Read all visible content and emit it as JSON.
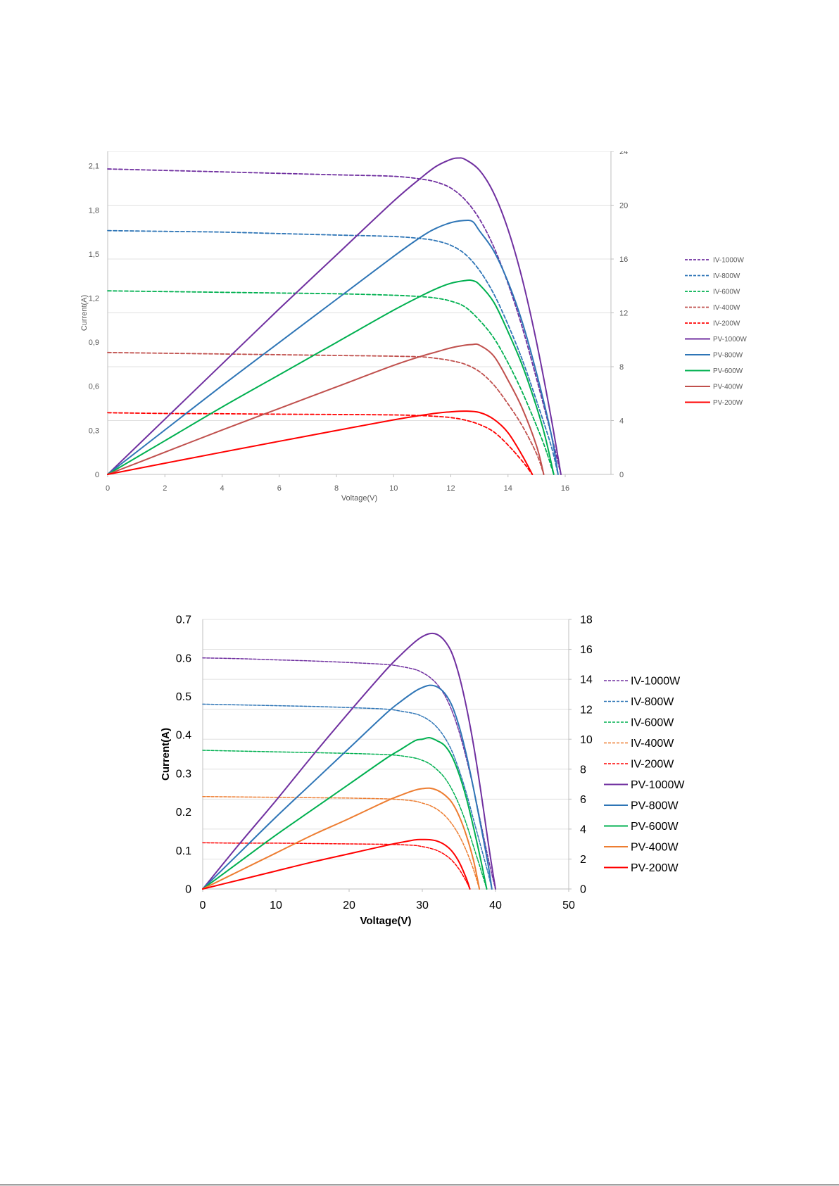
{
  "chart_data": [
    {
      "type": "line",
      "xlabel": "Voltage(V)",
      "ylabel": "Current(A)",
      "xlim": [
        0,
        17.6
      ],
      "xticks": [
        0,
        2,
        4,
        6,
        8,
        10,
        12,
        14,
        16
      ],
      "ylim": [
        0,
        2.2
      ],
      "yticks": [
        "0",
        "0,3",
        "0,6",
        "0,9",
        "1,2",
        "1,5",
        "1,8",
        "2,1"
      ],
      "ytick_values": [
        0,
        0.3,
        0.6,
        0.9,
        1.2,
        1.5,
        1.8,
        2.1
      ],
      "y2lim": [
        0,
        24
      ],
      "y2ticks": [
        0,
        4,
        8,
        12,
        16,
        20,
        24
      ],
      "grid": true,
      "legend_position": "right",
      "series": [
        {
          "name": "IV-1000W",
          "axis": "left",
          "style": "dashed",
          "color": "#7030A0",
          "x": [
            0,
            2,
            4,
            6,
            8,
            10,
            11,
            11.5,
            12,
            12.5,
            13,
            13.5,
            14,
            14.5,
            15,
            15.5,
            15.85
          ],
          "y": [
            2.08,
            2.07,
            2.06,
            2.05,
            2.04,
            2.03,
            2.01,
            1.99,
            1.95,
            1.87,
            1.74,
            1.55,
            1.3,
            1.0,
            0.65,
            0.28,
            0
          ]
        },
        {
          "name": "IV-800W",
          "axis": "left",
          "style": "dashed",
          "color": "#2E75B6",
          "x": [
            0,
            2,
            4,
            6,
            8,
            10,
            11,
            11.5,
            12,
            12.5,
            13,
            13.5,
            14,
            14.5,
            15,
            15.5,
            15.75
          ],
          "y": [
            1.66,
            1.655,
            1.65,
            1.64,
            1.63,
            1.62,
            1.605,
            1.59,
            1.56,
            1.5,
            1.39,
            1.23,
            1.02,
            0.78,
            0.5,
            0.2,
            0
          ]
        },
        {
          "name": "IV-600W",
          "axis": "left",
          "style": "dashed",
          "color": "#00B050",
          "x": [
            0,
            2,
            4,
            6,
            8,
            10,
            11,
            11.5,
            12,
            12.5,
            13,
            13.5,
            14,
            14.5,
            15,
            15.3,
            15.6
          ],
          "y": [
            1.25,
            1.245,
            1.24,
            1.235,
            1.23,
            1.22,
            1.21,
            1.2,
            1.18,
            1.14,
            1.05,
            0.93,
            0.76,
            0.56,
            0.33,
            0.18,
            0
          ]
        },
        {
          "name": "IV-400W",
          "axis": "left",
          "style": "dashed",
          "color": "#C0504D",
          "x": [
            0,
            2,
            4,
            6,
            8,
            10,
            11,
            11.5,
            12,
            12.5,
            13,
            13.5,
            14,
            14.5,
            15,
            15.25
          ],
          "y": [
            0.83,
            0.825,
            0.82,
            0.815,
            0.81,
            0.805,
            0.8,
            0.79,
            0.775,
            0.75,
            0.7,
            0.61,
            0.48,
            0.33,
            0.14,
            0
          ]
        },
        {
          "name": "IV-200W",
          "axis": "left",
          "style": "dashed",
          "color": "#FF0000",
          "x": [
            0,
            2,
            4,
            6,
            8,
            10,
            11,
            11.5,
            12,
            12.5,
            13,
            13.5,
            14,
            14.5,
            14.85
          ],
          "y": [
            0.42,
            0.415,
            0.413,
            0.41,
            0.408,
            0.405,
            0.4,
            0.395,
            0.387,
            0.37,
            0.34,
            0.29,
            0.2,
            0.09,
            0
          ]
        },
        {
          "name": "PV-1000W",
          "axis": "right",
          "style": "solid",
          "color": "#7030A0",
          "x": [
            0,
            2,
            4,
            6,
            8,
            10,
            11,
            11.5,
            12,
            12.25,
            12.5,
            13,
            13.5,
            14,
            14.5,
            15,
            15.5,
            15.85
          ],
          "y": [
            0,
            4.1,
            8.2,
            12.3,
            16.3,
            20.3,
            22.1,
            22.9,
            23.4,
            23.5,
            23.4,
            22.6,
            20.9,
            18.2,
            14.5,
            9.8,
            4.3,
            0
          ]
        },
        {
          "name": "PV-800W",
          "axis": "right",
          "style": "solid",
          "color": "#2E75B6",
          "x": [
            0,
            2,
            4,
            6,
            8,
            10,
            11,
            11.5,
            12,
            12.4,
            12.75,
            13,
            13.5,
            14,
            14.5,
            15,
            15.5,
            15.75
          ],
          "y": [
            0,
            3.3,
            6.6,
            9.8,
            13.0,
            16.2,
            17.7,
            18.3,
            18.7,
            18.85,
            18.8,
            18.1,
            16.6,
            14.3,
            11.3,
            7.5,
            3.1,
            0
          ]
        },
        {
          "name": "PV-600W",
          "axis": "right",
          "style": "solid",
          "color": "#00B050",
          "x": [
            0,
            2,
            4,
            6,
            8,
            10,
            11,
            11.5,
            12,
            12.5,
            12.75,
            13,
            13.5,
            14,
            14.5,
            15,
            15.3,
            15.6
          ],
          "y": [
            0,
            2.5,
            5.0,
            7.4,
            9.8,
            12.2,
            13.3,
            13.8,
            14.2,
            14.4,
            14.4,
            14.1,
            12.8,
            10.6,
            8.1,
            5.0,
            2.8,
            0
          ]
        },
        {
          "name": "PV-400W",
          "axis": "right",
          "style": "solid",
          "color": "#C0504D",
          "x": [
            0,
            2,
            4,
            6,
            8,
            10,
            11,
            11.5,
            12,
            12.5,
            12.75,
            13,
            13.5,
            14,
            14.5,
            15,
            15.25
          ],
          "y": [
            0,
            1.65,
            3.3,
            4.9,
            6.5,
            8.1,
            8.8,
            9.1,
            9.4,
            9.6,
            9.65,
            9.6,
            8.8,
            7.0,
            4.9,
            2.1,
            0
          ]
        },
        {
          "name": "PV-200W",
          "axis": "right",
          "style": "solid",
          "color": "#FF0000",
          "x": [
            0,
            2,
            4,
            6,
            8,
            10,
            11,
            11.5,
            12,
            12.5,
            13,
            13.5,
            14,
            14.5,
            14.85
          ],
          "y": [
            0,
            0.83,
            1.65,
            2.46,
            3.26,
            4.05,
            4.4,
            4.55,
            4.65,
            4.7,
            4.6,
            4.1,
            3.1,
            1.4,
            0
          ]
        }
      ]
    },
    {
      "type": "line",
      "xlabel": "Voltage(V)",
      "ylabel": "Current(A)",
      "xlim": [
        0,
        50
      ],
      "xticks": [
        0,
        10,
        20,
        30,
        40,
        50
      ],
      "ylim": [
        0,
        0.7
      ],
      "yticks": [
        "0",
        "0.1",
        "0.2",
        "0.3",
        "0.4",
        "0.5",
        "0.6",
        "0.7"
      ],
      "ytick_values": [
        0,
        0.1,
        0.2,
        0.3,
        0.4,
        0.5,
        0.6,
        0.7
      ],
      "y2lim": [
        0,
        18
      ],
      "y2ticks": [
        0,
        2,
        4,
        6,
        8,
        10,
        12,
        14,
        16,
        18
      ],
      "grid": true,
      "legend_position": "right",
      "series": [
        {
          "name": "IV-1000W",
          "axis": "left",
          "style": "dashed",
          "color": "#7030A0",
          "x": [
            0,
            5,
            10,
            15,
            20,
            25,
            27,
            29,
            30,
            31,
            32,
            33,
            34,
            35,
            36,
            37,
            38,
            39,
            39.6,
            40
          ],
          "y": [
            0.6,
            0.598,
            0.595,
            0.592,
            0.588,
            0.583,
            0.578,
            0.57,
            0.562,
            0.55,
            0.532,
            0.505,
            0.465,
            0.41,
            0.34,
            0.26,
            0.17,
            0.08,
            0.03,
            0
          ]
        },
        {
          "name": "IV-800W",
          "axis": "left",
          "style": "dashed",
          "color": "#2E75B6",
          "x": [
            0,
            5,
            10,
            15,
            20,
            25,
            27,
            29,
            30,
            31,
            32,
            33,
            34,
            35,
            36,
            37,
            38,
            39,
            39.5
          ],
          "y": [
            0.48,
            0.478,
            0.476,
            0.474,
            0.471,
            0.467,
            0.462,
            0.455,
            0.448,
            0.437,
            0.42,
            0.395,
            0.36,
            0.31,
            0.25,
            0.18,
            0.11,
            0.04,
            0
          ]
        },
        {
          "name": "IV-600W",
          "axis": "left",
          "style": "dashed",
          "color": "#00B050",
          "x": [
            0,
            5,
            10,
            15,
            20,
            25,
            27,
            29,
            30,
            31,
            32,
            33,
            34,
            35,
            36,
            37,
            38,
            38.8
          ],
          "y": [
            0.36,
            0.358,
            0.356,
            0.354,
            0.352,
            0.349,
            0.346,
            0.34,
            0.334,
            0.325,
            0.31,
            0.29,
            0.26,
            0.22,
            0.17,
            0.11,
            0.05,
            0
          ]
        },
        {
          "name": "IV-400W",
          "axis": "left",
          "style": "dashed",
          "color": "#ED7D31",
          "x": [
            0,
            5,
            10,
            15,
            20,
            25,
            27,
            29,
            30,
            31,
            32,
            33,
            34,
            35,
            36,
            37,
            37.8
          ],
          "y": [
            0.24,
            0.239,
            0.238,
            0.237,
            0.236,
            0.234,
            0.232,
            0.228,
            0.223,
            0.217,
            0.207,
            0.192,
            0.17,
            0.14,
            0.1,
            0.05,
            0
          ]
        },
        {
          "name": "IV-200W",
          "axis": "left",
          "style": "dashed",
          "color": "#FF0000",
          "x": [
            0,
            5,
            10,
            15,
            20,
            25,
            27,
            29,
            30,
            31,
            32,
            33,
            34,
            35,
            36,
            36.5
          ],
          "y": [
            0.12,
            0.119,
            0.119,
            0.118,
            0.117,
            0.116,
            0.115,
            0.113,
            0.11,
            0.106,
            0.1,
            0.09,
            0.075,
            0.052,
            0.02,
            0
          ]
        },
        {
          "name": "PV-1000W",
          "axis": "right",
          "style": "solid",
          "color": "#7030A0",
          "x": [
            0,
            5,
            10,
            15,
            20,
            25,
            27,
            29,
            30,
            31,
            32,
            33,
            34,
            35,
            36,
            37,
            38,
            39,
            39.6,
            40
          ],
          "y": [
            0,
            3.0,
            5.9,
            8.9,
            11.8,
            14.6,
            15.6,
            16.5,
            16.85,
            17.05,
            17.0,
            16.6,
            15.8,
            14.3,
            12.2,
            9.6,
            6.5,
            3.1,
            1.2,
            0
          ]
        },
        {
          "name": "PV-800W",
          "axis": "right",
          "style": "solid",
          "color": "#2E75B6",
          "x": [
            0,
            5,
            10,
            15,
            20,
            25,
            27,
            29,
            30,
            31,
            32,
            33,
            34,
            35,
            36,
            37,
            38,
            39,
            39.5
          ],
          "y": [
            0,
            2.4,
            4.8,
            7.1,
            9.4,
            11.7,
            12.5,
            13.2,
            13.45,
            13.6,
            13.5,
            13.1,
            12.3,
            10.9,
            9.0,
            6.7,
            4.2,
            1.6,
            0
          ]
        },
        {
          "name": "PV-600W",
          "axis": "right",
          "style": "solid",
          "color": "#00B050",
          "x": [
            0,
            5,
            10,
            15,
            20,
            25,
            27,
            29,
            30,
            31,
            32,
            33,
            34,
            35,
            36,
            37,
            38,
            38.8
          ],
          "y": [
            0,
            1.8,
            3.6,
            5.3,
            7.0,
            8.7,
            9.3,
            9.9,
            10.0,
            10.1,
            9.9,
            9.6,
            8.9,
            7.7,
            6.1,
            4.1,
            1.9,
            0
          ]
        },
        {
          "name": "PV-400W",
          "axis": "right",
          "style": "solid",
          "color": "#ED7D31",
          "x": [
            0,
            5,
            10,
            15,
            20,
            25,
            27,
            29,
            30,
            31,
            32,
            33,
            34,
            35,
            36,
            37,
            37.8
          ],
          "y": [
            0,
            1.2,
            2.4,
            3.6,
            4.7,
            5.85,
            6.25,
            6.6,
            6.7,
            6.73,
            6.6,
            6.3,
            5.8,
            4.9,
            3.6,
            1.9,
            0
          ]
        },
        {
          "name": "PV-200W",
          "axis": "right",
          "style": "solid",
          "color": "#FF0000",
          "x": [
            0,
            5,
            10,
            15,
            20,
            25,
            27,
            29,
            30,
            31,
            32,
            33,
            34,
            35,
            36,
            36.5
          ],
          "y": [
            0,
            0.6,
            1.2,
            1.8,
            2.35,
            2.9,
            3.1,
            3.28,
            3.3,
            3.29,
            3.2,
            2.97,
            2.55,
            1.82,
            0.72,
            0
          ]
        }
      ]
    }
  ]
}
